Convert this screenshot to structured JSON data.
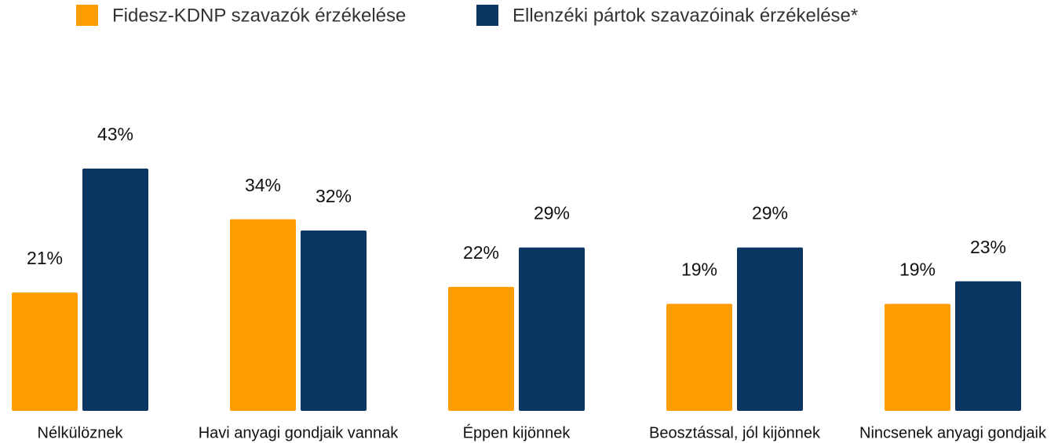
{
  "chart_data": {
    "type": "bar",
    "categories": [
      "Nélkülöznek",
      "Havi anyagi gondjaik vannak",
      "Éppen kijönnek",
      "Beosztással, jól kijönnek",
      "Nincsenek anyagi gondjaik"
    ],
    "series": [
      {
        "name": "Fidesz-KDNP szavazók érzékelése",
        "color": "#ff9c00",
        "values": [
          21,
          34,
          22,
          19,
          19
        ],
        "value_labels": [
          "21%",
          "34%",
          "22%",
          "19%",
          "19%"
        ]
      },
      {
        "name": "Ellenzéki pártok szavazóinak érzékelése*",
        "color": "#0a3661",
        "values": [
          43,
          32,
          29,
          29,
          23
        ],
        "value_labels": [
          "43%",
          "32%",
          "29%",
          "29%",
          "23%"
        ]
      }
    ]
  }
}
